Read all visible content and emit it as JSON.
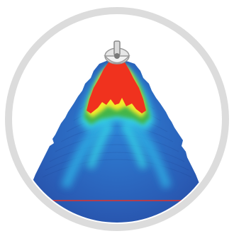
{
  "illustration": {
    "subject": "sonar-beam-cone",
    "icon": "transducer-icon",
    "colors": {
      "ring": "#dcdcdc",
      "background": "#ffffff",
      "deep": "#2c4fa8",
      "mid": "#2fa7e0",
      "cyan": "#35d3e6",
      "green": "#43b54a",
      "yellow": "#f4ea2a",
      "hot": "#f0321e",
      "bottom_line": "#e0322a"
    }
  }
}
